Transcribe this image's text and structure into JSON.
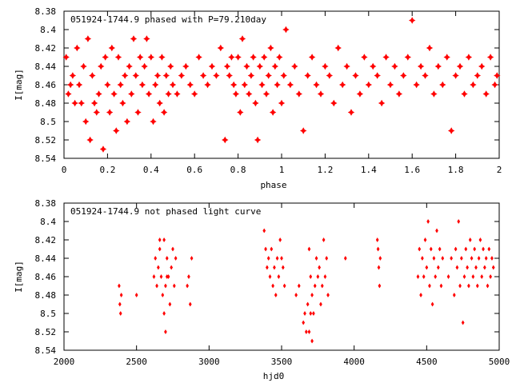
{
  "chart_data": [
    {
      "type": "scatter",
      "title": "051924-1744.9 phased with P=79.210day",
      "xlabel": "phase",
      "ylabel": "I[mag]",
      "xlim": [
        0,
        2
      ],
      "ylim": [
        8.54,
        8.38
      ],
      "y_inverted": true,
      "x_ticks": [
        0,
        0.2,
        0.4,
        0.6,
        0.8,
        1,
        1.2,
        1.4,
        1.6,
        1.8,
        2
      ],
      "x_tick_labels": [
        "0",
        "0.2",
        "0.4",
        "0.6",
        "0.8",
        "1",
        "1.2",
        "1.4",
        "1.6",
        "1.8",
        "2"
      ],
      "y_ticks": [
        8.38,
        8.4,
        8.42,
        8.44,
        8.46,
        8.48,
        8.5,
        8.52,
        8.54
      ],
      "y_tick_labels": [
        "8.38",
        "8.4",
        "8.42",
        "8.44",
        "8.46",
        "8.48",
        "8.5",
        "8.52",
        "8.54"
      ],
      "grid": false,
      "marker_color": "#ff0000",
      "marker": "star",
      "series": [
        {
          "points": [
            [
              0.01,
              8.43
            ],
            [
              0.02,
              8.47
            ],
            [
              0.03,
              8.46
            ],
            [
              0.04,
              8.45
            ],
            [
              0.05,
              8.48
            ],
            [
              0.06,
              8.42
            ],
            [
              0.07,
              8.46
            ],
            [
              0.08,
              8.48
            ],
            [
              0.09,
              8.44
            ],
            [
              0.1,
              8.5
            ],
            [
              0.11,
              8.41
            ],
            [
              0.12,
              8.52
            ],
            [
              0.13,
              8.45
            ],
            [
              0.14,
              8.48
            ],
            [
              0.15,
              8.49
            ],
            [
              0.16,
              8.47
            ],
            [
              0.17,
              8.44
            ],
            [
              0.18,
              8.53
            ],
            [
              0.19,
              8.43
            ],
            [
              0.2,
              8.46
            ],
            [
              0.21,
              8.49
            ],
            [
              0.22,
              8.42
            ],
            [
              0.23,
              8.47
            ],
            [
              0.24,
              8.51
            ],
            [
              0.25,
              8.43
            ],
            [
              0.26,
              8.46
            ],
            [
              0.27,
              8.48
            ],
            [
              0.28,
              8.45
            ],
            [
              0.29,
              8.5
            ],
            [
              0.3,
              8.44
            ],
            [
              0.31,
              8.47
            ],
            [
              0.32,
              8.41
            ],
            [
              0.33,
              8.45
            ],
            [
              0.34,
              8.49
            ],
            [
              0.35,
              8.43
            ],
            [
              0.36,
              8.46
            ],
            [
              0.37,
              8.44
            ],
            [
              0.38,
              8.41
            ],
            [
              0.39,
              8.47
            ],
            [
              0.4,
              8.43
            ],
            [
              0.41,
              8.5
            ],
            [
              0.42,
              8.46
            ],
            [
              0.43,
              8.45
            ],
            [
              0.44,
              8.48
            ],
            [
              0.45,
              8.43
            ],
            [
              0.46,
              8.49
            ],
            [
              0.47,
              8.45
            ],
            [
              0.48,
              8.47
            ],
            [
              0.49,
              8.44
            ],
            [
              0.5,
              8.46
            ],
            [
              0.52,
              8.47
            ],
            [
              0.54,
              8.45
            ],
            [
              0.56,
              8.44
            ],
            [
              0.58,
              8.46
            ],
            [
              0.6,
              8.47
            ],
            [
              0.62,
              8.43
            ],
            [
              0.64,
              8.45
            ],
            [
              0.66,
              8.46
            ],
            [
              0.68,
              8.44
            ],
            [
              0.7,
              8.45
            ],
            [
              0.72,
              8.42
            ],
            [
              0.74,
              8.52
            ],
            [
              0.75,
              8.44
            ],
            [
              0.76,
              8.45
            ],
            [
              0.77,
              8.43
            ],
            [
              0.78,
              8.46
            ],
            [
              0.79,
              8.47
            ],
            [
              0.8,
              8.43
            ],
            [
              0.81,
              8.49
            ],
            [
              0.82,
              8.41
            ],
            [
              0.83,
              8.46
            ],
            [
              0.84,
              8.44
            ],
            [
              0.85,
              8.47
            ],
            [
              0.86,
              8.45
            ],
            [
              0.87,
              8.43
            ],
            [
              0.88,
              8.48
            ],
            [
              0.89,
              8.52
            ],
            [
              0.9,
              8.44
            ],
            [
              0.91,
              8.46
            ],
            [
              0.92,
              8.43
            ],
            [
              0.93,
              8.47
            ],
            [
              0.94,
              8.45
            ],
            [
              0.95,
              8.42
            ],
            [
              0.96,
              8.49
            ],
            [
              0.97,
              8.44
            ],
            [
              0.98,
              8.46
            ],
            [
              0.99,
              8.43
            ],
            [
              1.0,
              8.48
            ],
            [
              1.01,
              8.45
            ],
            [
              1.02,
              8.4
            ],
            [
              1.04,
              8.46
            ],
            [
              1.06,
              8.44
            ],
            [
              1.08,
              8.47
            ],
            [
              1.1,
              8.51
            ],
            [
              1.12,
              8.45
            ],
            [
              1.14,
              8.43
            ],
            [
              1.16,
              8.46
            ],
            [
              1.18,
              8.47
            ],
            [
              1.2,
              8.44
            ],
            [
              1.22,
              8.45
            ],
            [
              1.24,
              8.48
            ],
            [
              1.26,
              8.42
            ],
            [
              1.28,
              8.46
            ],
            [
              1.3,
              8.44
            ],
            [
              1.32,
              8.49
            ],
            [
              1.34,
              8.45
            ],
            [
              1.36,
              8.47
            ],
            [
              1.38,
              8.43
            ],
            [
              1.4,
              8.46
            ],
            [
              1.42,
              8.44
            ],
            [
              1.44,
              8.45
            ],
            [
              1.46,
              8.48
            ],
            [
              1.48,
              8.43
            ],
            [
              1.5,
              8.46
            ],
            [
              1.52,
              8.44
            ],
            [
              1.54,
              8.47
            ],
            [
              1.56,
              8.45
            ],
            [
              1.58,
              8.43
            ],
            [
              1.6,
              8.39
            ],
            [
              1.62,
              8.46
            ],
            [
              1.64,
              8.44
            ],
            [
              1.66,
              8.45
            ],
            [
              1.68,
              8.42
            ],
            [
              1.7,
              8.47
            ],
            [
              1.72,
              8.44
            ],
            [
              1.74,
              8.46
            ],
            [
              1.76,
              8.43
            ],
            [
              1.78,
              8.51
            ],
            [
              1.8,
              8.45
            ],
            [
              1.82,
              8.44
            ],
            [
              1.84,
              8.47
            ],
            [
              1.86,
              8.43
            ],
            [
              1.88,
              8.46
            ],
            [
              1.9,
              8.45
            ],
            [
              1.92,
              8.44
            ],
            [
              1.94,
              8.47
            ],
            [
              1.96,
              8.43
            ],
            [
              1.98,
              8.46
            ],
            [
              1.99,
              8.45
            ]
          ]
        }
      ]
    },
    {
      "type": "scatter",
      "title": "051924-1744.9 not phased light curve",
      "xlabel": "hjd0",
      "ylabel": "I[mag]",
      "xlim": [
        2000,
        5000
      ],
      "ylim": [
        8.54,
        8.38
      ],
      "y_inverted": true,
      "x_ticks": [
        2000,
        2500,
        3000,
        3500,
        4000,
        4500,
        5000
      ],
      "x_tick_labels": [
        "2000",
        "2500",
        "3000",
        "3500",
        "4000",
        "4500",
        "5000"
      ],
      "y_ticks": [
        8.38,
        8.4,
        8.42,
        8.44,
        8.46,
        8.48,
        8.5,
        8.52,
        8.54
      ],
      "y_tick_labels": [
        "8.38",
        "8.4",
        "8.42",
        "8.44",
        "8.46",
        "8.48",
        "8.5",
        "8.52",
        "8.54"
      ],
      "grid": false,
      "marker_color": "#ff0000",
      "marker": "diamond",
      "series": [
        {
          "points": [
            [
              2380,
              8.47
            ],
            [
              2385,
              8.49
            ],
            [
              2390,
              8.5
            ],
            [
              2395,
              8.48
            ],
            [
              2500,
              8.48
            ],
            [
              2620,
              8.46
            ],
            [
              2630,
              8.44
            ],
            [
              2640,
              8.47
            ],
            [
              2650,
              8.45
            ],
            [
              2660,
              8.43
            ],
            [
              2670,
              8.46
            ],
            [
              2680,
              8.48
            ],
            [
              2690,
              8.42
            ],
            [
              2700,
              8.47
            ],
            [
              2710,
              8.44
            ],
            [
              2720,
              8.46
            ],
            [
              2730,
              8.49
            ],
            [
              2740,
              8.45
            ],
            [
              2750,
              8.43
            ],
            [
              2760,
              8.47
            ],
            [
              2770,
              8.44
            ],
            [
              2690,
              8.5
            ],
            [
              2700,
              8.52
            ],
            [
              2710,
              8.46
            ],
            [
              2660,
              8.42
            ],
            [
              2850,
              8.47
            ],
            [
              2860,
              8.46
            ],
            [
              2870,
              8.49
            ],
            [
              2880,
              8.44
            ],
            [
              3380,
              8.41
            ],
            [
              3390,
              8.43
            ],
            [
              3400,
              8.45
            ],
            [
              3410,
              8.44
            ],
            [
              3420,
              8.46
            ],
            [
              3430,
              8.43
            ],
            [
              3440,
              8.47
            ],
            [
              3450,
              8.45
            ],
            [
              3460,
              8.48
            ],
            [
              3470,
              8.44
            ],
            [
              3480,
              8.46
            ],
            [
              3490,
              8.42
            ],
            [
              3500,
              8.44
            ],
            [
              3510,
              8.45
            ],
            [
              3520,
              8.47
            ],
            [
              3600,
              8.48
            ],
            [
              3620,
              8.47
            ],
            [
              3650,
              8.51
            ],
            [
              3660,
              8.5
            ],
            [
              3670,
              8.52
            ],
            [
              3680,
              8.49
            ],
            [
              3690,
              8.43
            ],
            [
              3700,
              8.46
            ],
            [
              3710,
              8.48
            ],
            [
              3720,
              8.5
            ],
            [
              3730,
              8.47
            ],
            [
              3740,
              8.44
            ],
            [
              3750,
              8.46
            ],
            [
              3760,
              8.45
            ],
            [
              3770,
              8.49
            ],
            [
              3780,
              8.47
            ],
            [
              3790,
              8.42
            ],
            [
              3800,
              8.46
            ],
            [
              3810,
              8.44
            ],
            [
              3820,
              8.48
            ],
            [
              3690,
              8.52
            ],
            [
              3700,
              8.5
            ],
            [
              3710,
              8.53
            ],
            [
              3940,
              8.44
            ],
            [
              4160,
              8.42
            ],
            [
              4165,
              8.43
            ],
            [
              4170,
              8.45
            ],
            [
              4175,
              8.47
            ],
            [
              4180,
              8.44
            ],
            [
              4440,
              8.46
            ],
            [
              4450,
              8.43
            ],
            [
              4460,
              8.48
            ],
            [
              4470,
              8.44
            ],
            [
              4480,
              8.46
            ],
            [
              4490,
              8.42
            ],
            [
              4500,
              8.45
            ],
            [
              4510,
              8.4
            ],
            [
              4520,
              8.47
            ],
            [
              4530,
              8.43
            ],
            [
              4540,
              8.49
            ],
            [
              4550,
              8.44
            ],
            [
              4560,
              8.46
            ],
            [
              4570,
              8.41
            ],
            [
              4580,
              8.45
            ],
            [
              4590,
              8.43
            ],
            [
              4600,
              8.47
            ],
            [
              4610,
              8.44
            ],
            [
              4650,
              8.46
            ],
            [
              4670,
              8.44
            ],
            [
              4690,
              8.48
            ],
            [
              4700,
              8.43
            ],
            [
              4710,
              8.45
            ],
            [
              4720,
              8.4
            ],
            [
              4730,
              8.47
            ],
            [
              4740,
              8.44
            ],
            [
              4750,
              8.51
            ],
            [
              4760,
              8.46
            ],
            [
              4770,
              8.43
            ],
            [
              4780,
              8.45
            ],
            [
              4790,
              8.47
            ],
            [
              4800,
              8.42
            ],
            [
              4810,
              8.44
            ],
            [
              4820,
              8.46
            ],
            [
              4830,
              8.43
            ],
            [
              4840,
              8.45
            ],
            [
              4850,
              8.47
            ],
            [
              4860,
              8.44
            ],
            [
              4870,
              8.42
            ],
            [
              4880,
              8.46
            ],
            [
              4890,
              8.43
            ],
            [
              4900,
              8.45
            ],
            [
              4910,
              8.44
            ],
            [
              4920,
              8.47
            ],
            [
              4930,
              8.43
            ],
            [
              4940,
              8.46
            ],
            [
              4950,
              8.44
            ],
            [
              4960,
              8.45
            ]
          ]
        }
      ]
    }
  ]
}
